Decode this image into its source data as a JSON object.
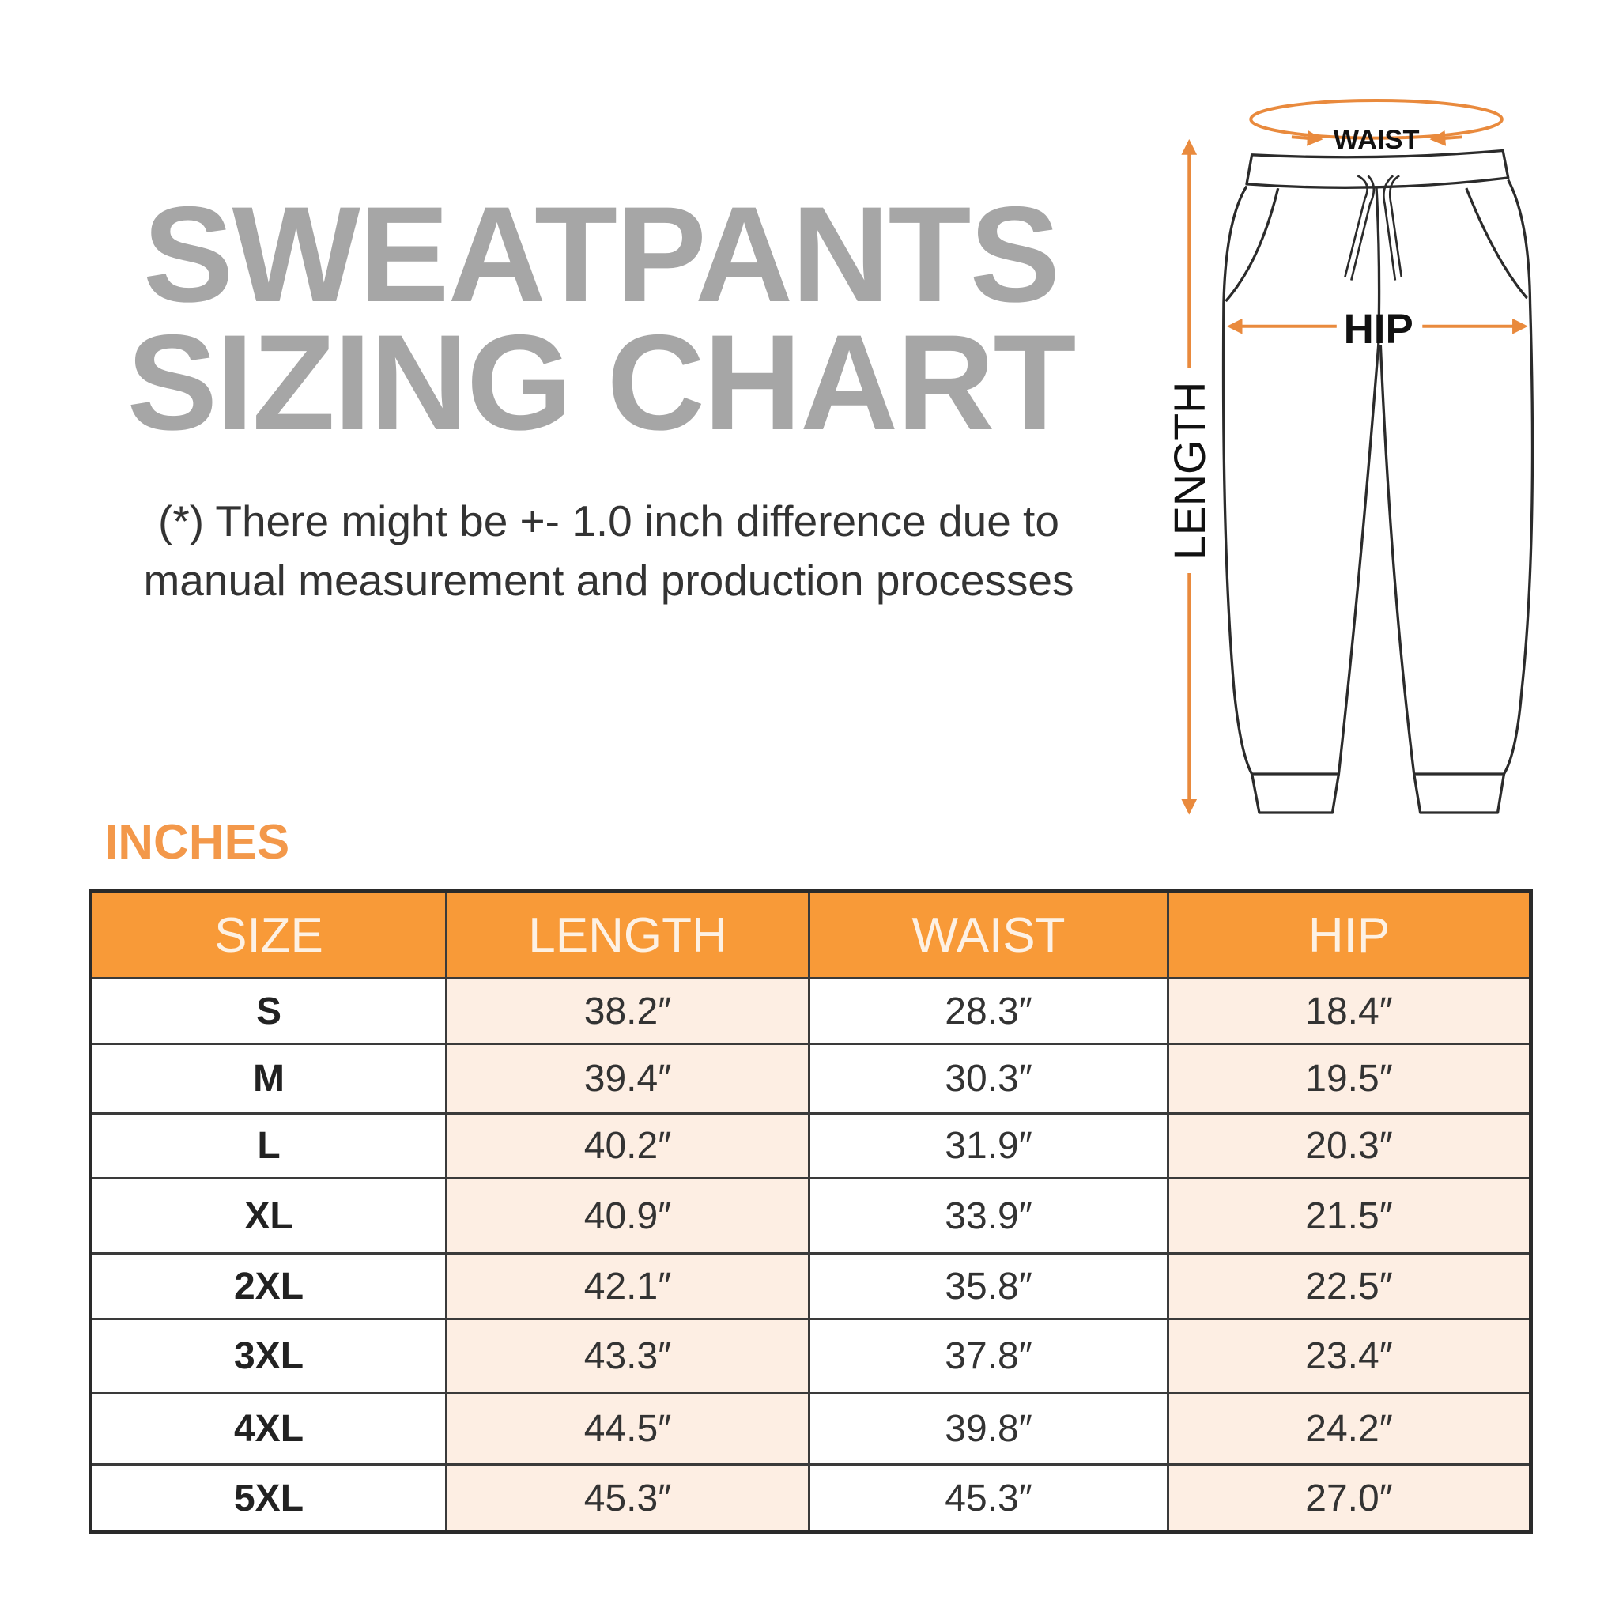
{
  "title": {
    "line1": "SWEATPANTS",
    "line2": "SIZING CHART"
  },
  "note": {
    "line1": "(*) There might be +- 1.0 inch difference due to",
    "line2": "manual measurement and production processes"
  },
  "units": "INCHES",
  "diagram": {
    "waist": "WAIST",
    "hip": "HIP",
    "length": "LENGTH"
  },
  "colors": {
    "accent": "#f89a38",
    "title": "#a6a6a6",
    "tint": "#fdeee3"
  },
  "table": {
    "headers": [
      "SIZE",
      "LENGTH",
      "WAIST",
      "HIP"
    ],
    "rows": [
      [
        "S",
        "38.2″",
        "28.3″",
        "18.4″"
      ],
      [
        "M",
        "39.4″",
        "30.3″",
        "19.5″"
      ],
      [
        "L",
        "40.2″",
        "31.9″",
        "20.3″"
      ],
      [
        "XL",
        "40.9″",
        "33.9″",
        "21.5″"
      ],
      [
        "2XL",
        "42.1″",
        "35.8″",
        "22.5″"
      ],
      [
        "3XL",
        "43.3″",
        "37.8″",
        "23.4″"
      ],
      [
        "4XL",
        "44.5″",
        "39.8″",
        "24.2″"
      ],
      [
        "5XL",
        "45.3″",
        "45.3″",
        "27.0″"
      ]
    ]
  }
}
